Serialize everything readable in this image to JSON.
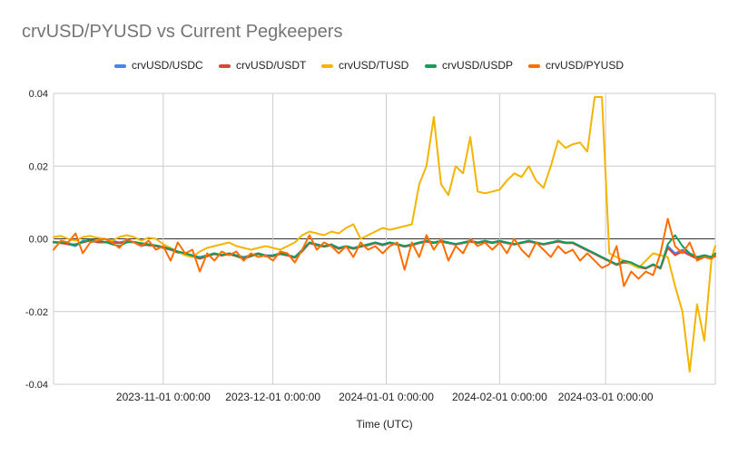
{
  "chart_data": {
    "type": "line",
    "title": "crvUSD/PYUSD vs Current Pegkeepers",
    "xlabel": "Time (UTC)",
    "ylabel": "",
    "ylim": [
      -0.04,
      0.04
    ],
    "yticks": [
      "0.04",
      "0.02",
      "0.00",
      "-0.02",
      "-0.04"
    ],
    "xticks": [
      "2023-11-01 0:00:00",
      "2023-12-01 0:00:00",
      "2024-01-01 0:00:00",
      "2024-02-01 0:00:00",
      "2024-03-01 0:00:00"
    ],
    "xtick_dates": [
      "2023-11-01",
      "2023-12-01",
      "2024-01-01",
      "2024-02-01",
      "2024-03-01"
    ],
    "xrange": [
      "2023-10-02",
      "2024-03-31"
    ],
    "grid": true,
    "legend_position": "top",
    "x": [
      "2023-10-02",
      "2023-10-04",
      "2023-10-06",
      "2023-10-08",
      "2023-10-10",
      "2023-10-12",
      "2023-10-14",
      "2023-10-16",
      "2023-10-18",
      "2023-10-20",
      "2023-10-22",
      "2023-10-24",
      "2023-10-26",
      "2023-10-28",
      "2023-10-30",
      "2023-11-01",
      "2023-11-03",
      "2023-11-05",
      "2023-11-07",
      "2023-11-09",
      "2023-11-11",
      "2023-11-13",
      "2023-11-15",
      "2023-11-17",
      "2023-11-19",
      "2023-11-21",
      "2023-11-23",
      "2023-11-25",
      "2023-11-27",
      "2023-11-29",
      "2023-12-01",
      "2023-12-03",
      "2023-12-05",
      "2023-12-07",
      "2023-12-09",
      "2023-12-11",
      "2023-12-13",
      "2023-12-15",
      "2023-12-17",
      "2023-12-19",
      "2023-12-21",
      "2023-12-23",
      "2023-12-25",
      "2023-12-27",
      "2023-12-29",
      "2023-12-31",
      "2024-01-02",
      "2024-01-04",
      "2024-01-06",
      "2024-01-08",
      "2024-01-10",
      "2024-01-12",
      "2024-01-14",
      "2024-01-16",
      "2024-01-18",
      "2024-01-20",
      "2024-01-22",
      "2024-01-24",
      "2024-01-26",
      "2024-01-28",
      "2024-01-30",
      "2024-02-01",
      "2024-02-03",
      "2024-02-05",
      "2024-02-07",
      "2024-02-09",
      "2024-02-11",
      "2024-02-13",
      "2024-02-15",
      "2024-02-17",
      "2024-02-19",
      "2024-02-21",
      "2024-02-23",
      "2024-02-25",
      "2024-02-27",
      "2024-02-29",
      "2024-03-02",
      "2024-03-04",
      "2024-03-06",
      "2024-03-08",
      "2024-03-10",
      "2024-03-12",
      "2024-03-14",
      "2024-03-16",
      "2024-03-18",
      "2024-03-20",
      "2024-03-22",
      "2024-03-24",
      "2024-03-26",
      "2024-03-28",
      "2024-03-30",
      "2024-03-31"
    ],
    "series": [
      {
        "name": "crvUSD/USDC",
        "color": "#4285F4",
        "values": [
          -0.001,
          -0.001,
          -0.0015,
          -0.002,
          -0.0005,
          -0.0005,
          -0.001,
          -0.001,
          -0.0005,
          -0.001,
          -0.0005,
          -0.001,
          -0.002,
          -0.0015,
          -0.002,
          -0.0025,
          -0.003,
          -0.0035,
          -0.004,
          -0.0045,
          -0.005,
          -0.0045,
          -0.004,
          -0.0045,
          -0.004,
          -0.0045,
          -0.005,
          -0.0045,
          -0.004,
          -0.0045,
          -0.0045,
          -0.004,
          -0.0045,
          -0.005,
          -0.003,
          -0.001,
          -0.0015,
          -0.002,
          -0.0015,
          -0.0025,
          -0.002,
          -0.0025,
          -0.002,
          -0.0015,
          -0.001,
          -0.0015,
          -0.001,
          -0.0015,
          -0.002,
          -0.0015,
          -0.001,
          -0.0005,
          -0.001,
          -0.0005,
          -0.001,
          -0.0015,
          -0.001,
          -0.0005,
          -0.001,
          -0.0005,
          -0.001,
          -0.0005,
          -0.001,
          -0.0015,
          -0.001,
          -0.0005,
          -0.001,
          -0.0015,
          -0.001,
          -0.0005,
          -0.001,
          -0.001,
          -0.002,
          -0.003,
          -0.004,
          -0.005,
          -0.006,
          -0.007,
          -0.006,
          -0.0065,
          -0.0075,
          -0.008,
          -0.007,
          -0.008,
          -0.002,
          -0.004,
          -0.003,
          -0.004,
          -0.005,
          -0.0045,
          -0.005,
          -0.0045
        ]
      },
      {
        "name": "crvUSD/USDT",
        "color": "#DB4437",
        "values": [
          -0.001,
          -0.0012,
          -0.0015,
          -0.0015,
          -0.001,
          -0.0005,
          -0.0008,
          -0.001,
          -0.001,
          -0.0012,
          -0.0008,
          -0.001,
          -0.0015,
          -0.0018,
          -0.002,
          -0.0025,
          -0.003,
          -0.0038,
          -0.0042,
          -0.0048,
          -0.0055,
          -0.0048,
          -0.0042,
          -0.0046,
          -0.0042,
          -0.0048,
          -0.0055,
          -0.0048,
          -0.0042,
          -0.0048,
          -0.0048,
          -0.0042,
          -0.0046,
          -0.0052,
          -0.0035,
          -0.0012,
          -0.0018,
          -0.0022,
          -0.0018,
          -0.0028,
          -0.0022,
          -0.0028,
          -0.0022,
          -0.0018,
          -0.0012,
          -0.0018,
          -0.0012,
          -0.0016,
          -0.0022,
          -0.0018,
          -0.0012,
          -0.0008,
          -0.0012,
          -0.0008,
          -0.0012,
          -0.0016,
          -0.0012,
          -0.0008,
          -0.0012,
          -0.0008,
          -0.0012,
          -0.0008,
          -0.0012,
          -0.0016,
          -0.0012,
          -0.0008,
          -0.0012,
          -0.0016,
          -0.0012,
          -0.0008,
          -0.0012,
          -0.0012,
          -0.0022,
          -0.0032,
          -0.0042,
          -0.0052,
          -0.0062,
          -0.0072,
          -0.0065,
          -0.0068,
          -0.0078,
          -0.0082,
          -0.0072,
          -0.0082,
          -0.0025,
          -0.0045,
          -0.0035,
          -0.0045,
          -0.0055,
          -0.0048,
          -0.0052,
          -0.0048
        ]
      },
      {
        "name": "crvUSD/TUSD",
        "color": "#F4B400",
        "values": [
          0.0005,
          0.0008,
          0.0,
          -0.0005,
          0.0005,
          0.0008,
          0.0003,
          0.0,
          -0.0005,
          0.0005,
          0.001,
          0.0005,
          -0.0005,
          0.0003,
          0.0,
          -0.0015,
          -0.0025,
          -0.0035,
          -0.0045,
          -0.005,
          -0.0035,
          -0.0025,
          -0.002,
          -0.0015,
          -0.001,
          -0.002,
          -0.0025,
          -0.003,
          -0.0025,
          -0.002,
          -0.0025,
          -0.003,
          -0.002,
          -0.001,
          0.001,
          0.002,
          0.0015,
          0.001,
          0.002,
          0.0015,
          0.003,
          0.004,
          0.0,
          0.001,
          0.002,
          0.003,
          0.0025,
          0.003,
          0.0035,
          0.004,
          0.015,
          0.02,
          0.0335,
          0.015,
          0.012,
          0.02,
          0.018,
          0.028,
          0.013,
          0.0125,
          0.013,
          0.0135,
          0.016,
          0.018,
          0.017,
          0.02,
          0.016,
          0.014,
          0.02,
          0.027,
          0.025,
          0.026,
          0.0265,
          0.024,
          0.039,
          0.039,
          -0.004,
          -0.005,
          -0.006,
          -0.007,
          -0.008,
          -0.006,
          -0.004,
          -0.0045,
          -0.005,
          -0.013,
          -0.02,
          -0.0365,
          -0.018,
          -0.028,
          -0.005,
          -0.002
        ]
      },
      {
        "name": "crvUSD/USDP",
        "color": "#0F9D58",
        "values": [
          -0.0008,
          -0.001,
          -0.0012,
          -0.0018,
          -0.0008,
          -0.0002,
          -0.0006,
          -0.0008,
          -0.0015,
          -0.002,
          -0.001,
          -0.0008,
          -0.0012,
          -0.0015,
          -0.0018,
          -0.0022,
          -0.0028,
          -0.0035,
          -0.004,
          -0.0046,
          -0.0052,
          -0.0046,
          -0.004,
          -0.0044,
          -0.004,
          -0.0046,
          -0.0052,
          -0.0046,
          -0.004,
          -0.0046,
          -0.0046,
          -0.004,
          -0.0044,
          -0.005,
          -0.0032,
          -0.001,
          -0.0016,
          -0.002,
          -0.0016,
          -0.0026,
          -0.002,
          -0.0026,
          -0.002,
          -0.0016,
          -0.001,
          -0.0016,
          -0.001,
          -0.0014,
          -0.002,
          -0.0016,
          -0.001,
          -0.0006,
          -0.001,
          -0.0006,
          -0.001,
          -0.0014,
          -0.001,
          -0.0006,
          -0.001,
          -0.0006,
          -0.001,
          -0.0006,
          -0.001,
          -0.0014,
          -0.001,
          -0.0006,
          -0.001,
          -0.0014,
          -0.001,
          -0.0006,
          -0.001,
          -0.001,
          -0.002,
          -0.003,
          -0.004,
          -0.005,
          -0.006,
          -0.007,
          -0.006,
          -0.0065,
          -0.0075,
          -0.008,
          -0.007,
          -0.008,
          -0.0015,
          0.001,
          -0.002,
          -0.004,
          -0.005,
          -0.0045,
          -0.005,
          -0.004
        ]
      },
      {
        "name": "crvUSD/PYUSD",
        "color": "#FF6D01",
        "values": [
          -0.003,
          -0.0005,
          -0.001,
          0.0015,
          -0.004,
          -0.001,
          -0.0005,
          0.0,
          -0.001,
          -0.0025,
          0.0,
          -0.001,
          -0.002,
          -0.0005,
          -0.003,
          -0.002,
          -0.006,
          -0.001,
          -0.004,
          -0.003,
          -0.009,
          -0.004,
          -0.006,
          -0.0035,
          -0.0045,
          -0.0035,
          -0.006,
          -0.004,
          -0.005,
          -0.0045,
          -0.006,
          -0.0035,
          -0.004,
          -0.0065,
          -0.003,
          0.001,
          -0.003,
          -0.001,
          -0.002,
          -0.004,
          -0.002,
          -0.005,
          -0.001,
          -0.003,
          -0.002,
          -0.004,
          -0.002,
          -0.001,
          -0.0085,
          -0.001,
          -0.005,
          0.001,
          -0.003,
          0.0,
          -0.006,
          -0.002,
          -0.004,
          0.0,
          -0.002,
          -0.001,
          -0.003,
          -0.001,
          -0.004,
          0.0,
          -0.003,
          -0.005,
          -0.001,
          -0.003,
          -0.005,
          -0.002,
          -0.004,
          -0.003,
          -0.006,
          -0.004,
          -0.006,
          -0.008,
          -0.007,
          -0.002,
          -0.013,
          -0.009,
          -0.011,
          -0.009,
          -0.01,
          -0.004,
          0.0055,
          -0.002,
          -0.004,
          -0.001,
          -0.006,
          -0.005,
          -0.0055,
          -0.0045
        ]
      }
    ]
  }
}
